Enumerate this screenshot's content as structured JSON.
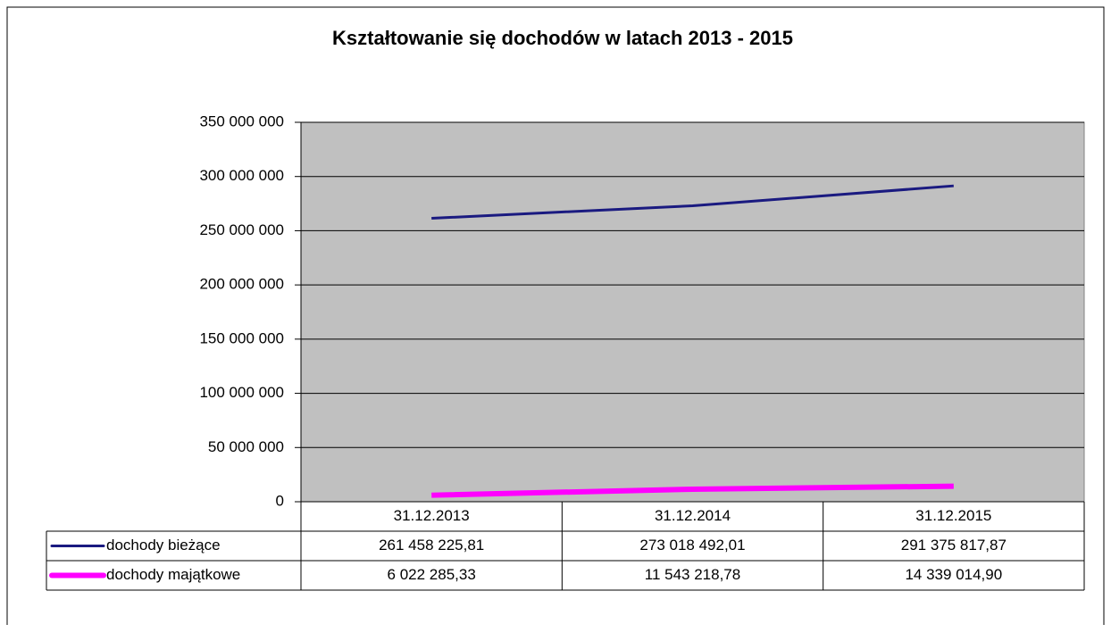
{
  "chart_data": {
    "type": "line",
    "title": "Kształtowanie się dochodów w latach 2013 - 2015",
    "categories": [
      "31.12.2013",
      "31.12.2014",
      "31.12.2015"
    ],
    "series": [
      {
        "name": "dochody bieżące",
        "color": "#1a1a80",
        "values": [
          261458225.81,
          273018492.01,
          291375817.87
        ],
        "value_labels": [
          "261 458 225,81",
          "273 018 492,01",
          "291 375 817,87"
        ]
      },
      {
        "name": "dochody majątkowe",
        "color": "#ff00ff",
        "values": [
          6022285.33,
          11543218.78,
          14339014.9
        ],
        "value_labels": [
          "6 022 285,33",
          "11 543 218,78",
          "14 339 014,90"
        ]
      }
    ],
    "ylim": [
      0,
      350000000
    ],
    "yticks": [
      0,
      {
        "value": 50000000,
        "label": "50 000 000"
      },
      {
        "value": 100000000,
        "label": "100 000 000"
      },
      {
        "value": 150000000,
        "label": "150 000 000"
      },
      {
        "value": 200000000,
        "label": "200 000 000"
      },
      {
        "value": 250000000,
        "label": "250 000 000"
      },
      {
        "value": 300000000,
        "label": "300 000 000"
      },
      {
        "value": 350000000,
        "label": "350 000 000"
      }
    ],
    "grid": true
  }
}
